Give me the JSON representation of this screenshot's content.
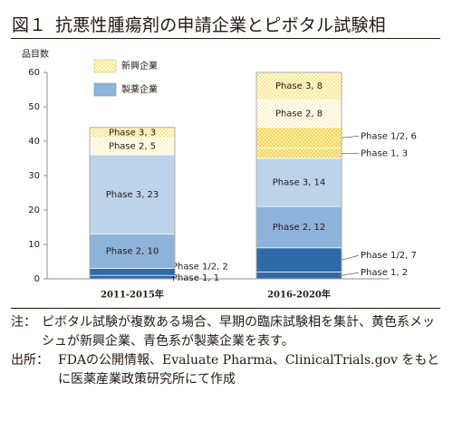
{
  "figure": {
    "number": "図１",
    "title": "抗悪性腫瘍剤の申請企業とピボタル試験相"
  },
  "colors": {
    "industry_dark": "#2e6aa8",
    "industry_mid": "#8eb3db",
    "industry_light": "#bcd3ea",
    "emerging_dark": "#f5dd6a",
    "emerging_mid": "#fdf4c9",
    "emerging_light": "#fefbea",
    "stroke": "#9a9a9a"
  },
  "chart_data": {
    "type": "bar",
    "stacked": true,
    "ylabel": "品目数",
    "ylim": [
      0,
      60
    ],
    "yticks": [
      0,
      10,
      20,
      30,
      40,
      50,
      60
    ],
    "grid": false,
    "legend": {
      "placement": "top-left",
      "entries": [
        {
          "label": "新興企業",
          "pattern": "mesh-yellow"
        },
        {
          "label": "製薬企業",
          "pattern": "solid-blue"
        }
      ]
    },
    "categories": [
      "2011-2015年",
      "2016-2020年"
    ],
    "series": [
      {
        "group": "製薬企業",
        "phase": "Phase 1",
        "values": [
          1,
          2
        ],
        "labels": [
          "Phase 1, 1",
          "Phase 1, 2"
        ],
        "label_pos": "outside",
        "fill": "industry_dark"
      },
      {
        "group": "製薬企業",
        "phase": "Phase 1/2",
        "values": [
          2,
          7
        ],
        "labels": [
          "Phase 1/2, 2",
          "Phase 1/2, 7"
        ],
        "label_pos": "outside",
        "fill": "industry_dark"
      },
      {
        "group": "製薬企業",
        "phase": "Phase 2",
        "values": [
          10,
          12
        ],
        "labels": [
          "Phase 2, 10",
          "Phase 2, 12"
        ],
        "label_pos": "inside",
        "fill": "industry_mid"
      },
      {
        "group": "製薬企業",
        "phase": "Phase 3",
        "values": [
          23,
          14
        ],
        "labels": [
          "Phase 3, 23",
          "Phase 3, 14"
        ],
        "label_pos": "inside",
        "fill": "industry_light"
      },
      {
        "group": "新興企業",
        "phase": "Phase 1",
        "values": [
          0,
          3
        ],
        "labels": [
          "",
          "Phase 1, 3"
        ],
        "label_pos": "outside",
        "fill": "emerging_dark"
      },
      {
        "group": "新興企業",
        "phase": "Phase 1/2",
        "values": [
          0,
          6
        ],
        "labels": [
          "",
          "Phase 1/2, 6"
        ],
        "label_pos": "outside",
        "fill": "emerging_dark"
      },
      {
        "group": "新興企業",
        "phase": "Phase 2",
        "values": [
          5,
          8
        ],
        "labels": [
          "Phase 2, 5",
          "Phase 2, 8"
        ],
        "label_pos": "inside",
        "fill": "emerging_mid"
      },
      {
        "group": "新興企業",
        "phase": "Phase 3",
        "values": [
          3,
          8
        ],
        "labels": [
          "Phase 3, 3",
          "Phase 3, 8"
        ],
        "label_pos": "inside",
        "fill": "emerging_dark"
      }
    ]
  },
  "notes": {
    "note_label": "注：",
    "note_text": "ピボタル試験が複数ある場合、早期の臨床試験相を集計、黄色系メッシュが新興企業、青色系が製薬企業を表す。",
    "source_label": "出所：",
    "source_text": "FDAの公開情報、Evaluate Pharma、ClinicalTrials.gov をもとに医薬産業政策研究所にて作成"
  }
}
